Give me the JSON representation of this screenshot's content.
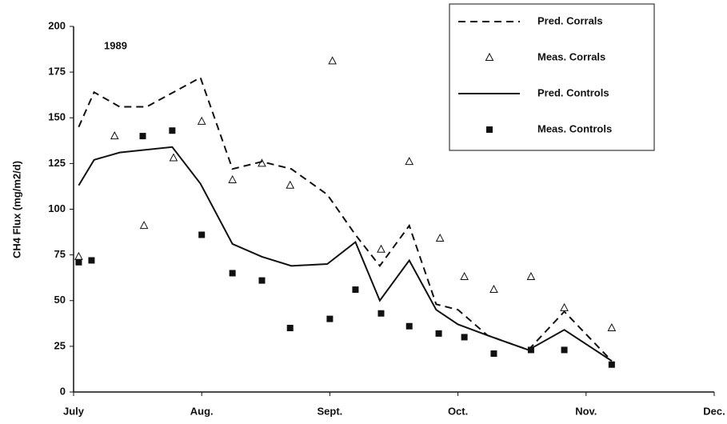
{
  "chart_data": {
    "type": "line",
    "annotation": "1989",
    "y_label": "CH4 Flux (mg/m2/d)",
    "xlim": [
      0,
      5
    ],
    "xticks": [
      {
        "value": 0,
        "label": "July"
      },
      {
        "value": 1,
        "label": "Aug."
      },
      {
        "value": 2,
        "label": "Sept."
      },
      {
        "value": 3,
        "label": "Oct."
      },
      {
        "value": 4,
        "label": "Nov."
      },
      {
        "value": 5,
        "label": "Dec."
      }
    ],
    "ylim": [
      0,
      200
    ],
    "yticks": [
      0,
      25,
      50,
      75,
      100,
      125,
      150,
      175,
      200
    ],
    "legend": "upper-right",
    "series": [
      {
        "name": "Pred. Corrals",
        "color": "#111111",
        "style": "dashed",
        "x": [
          0.04,
          0.16,
          0.36,
          0.57,
          0.99,
          1.24,
          1.47,
          1.7,
          1.98,
          2.2,
          2.39,
          2.62,
          2.83,
          3.0,
          3.23,
          3.55,
          3.83,
          4.2
        ],
        "values": [
          145,
          164,
          156,
          156,
          172,
          122,
          126,
          122,
          108,
          86,
          69,
          91,
          48,
          45,
          31,
          23,
          44,
          17
        ]
      },
      {
        "name": "Meas. Corrals",
        "color": "#111111",
        "style": "triangle",
        "x": [
          0.04,
          0.32,
          0.55,
          0.78,
          1.0,
          1.24,
          1.47,
          1.69,
          2.02,
          2.4,
          2.62,
          2.86,
          3.05,
          3.28,
          3.57,
          3.83,
          4.2
        ],
        "values": [
          74,
          140,
          91,
          128,
          148,
          116,
          125,
          113,
          181,
          78,
          126,
          84,
          63,
          56,
          63,
          46,
          35
        ]
      },
      {
        "name": "Pred. Controls",
        "color": "#111111",
        "style": "solid",
        "x": [
          0.04,
          0.16,
          0.36,
          0.77,
          0.99,
          1.24,
          1.47,
          1.7,
          1.98,
          2.2,
          2.39,
          2.62,
          2.83,
          3.0,
          3.23,
          3.55,
          3.83,
          4.2
        ],
        "values": [
          113,
          127,
          131,
          134,
          114,
          81,
          74,
          69,
          70,
          82,
          50,
          72,
          45,
          37,
          31,
          23,
          34,
          17
        ]
      },
      {
        "name": "Meas. Controls",
        "color": "#111111",
        "style": "square",
        "x": [
          0.04,
          0.14,
          0.54,
          0.77,
          1.0,
          1.24,
          1.47,
          1.69,
          2.0,
          2.2,
          2.4,
          2.62,
          2.85,
          3.05,
          3.28,
          3.57,
          3.83,
          4.2
        ],
        "values": [
          71,
          72,
          140,
          143,
          86,
          65,
          61,
          35,
          40,
          56,
          43,
          36,
          32,
          30,
          21,
          23,
          23,
          15
        ]
      }
    ]
  }
}
